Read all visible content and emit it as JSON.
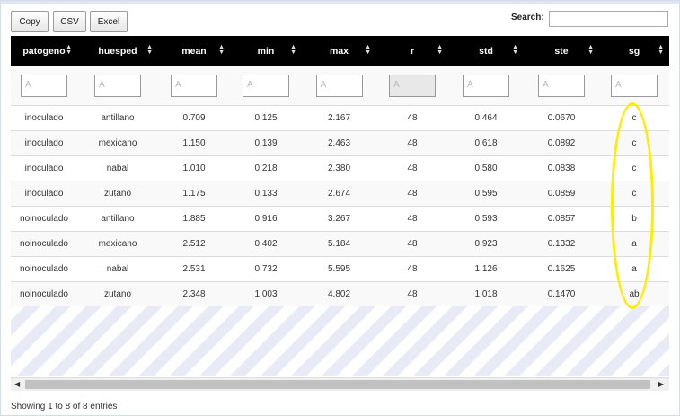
{
  "buttons": {
    "copy": "Copy",
    "csv": "CSV",
    "excel": "Excel"
  },
  "search": {
    "label": "Search:",
    "value": ""
  },
  "columns": [
    "patogeno",
    "huesped",
    "mean",
    "min",
    "max",
    "r",
    "std",
    "ste",
    "sg"
  ],
  "filters": [
    "A",
    "A",
    "A",
    "A",
    "A",
    "A",
    "A",
    "A",
    "A"
  ],
  "rows": [
    [
      "inoculado",
      "antillano",
      "0.709",
      "0.125",
      "2.167",
      "48",
      "0.464",
      "0.0670",
      "c"
    ],
    [
      "inoculado",
      "mexicano",
      "1.150",
      "0.139",
      "2.463",
      "48",
      "0.618",
      "0.0892",
      "c"
    ],
    [
      "inoculado",
      "nabal",
      "1.010",
      "0.218",
      "2.380",
      "48",
      "0.580",
      "0.0838",
      "c"
    ],
    [
      "inoculado",
      "zutano",
      "1.175",
      "0.133",
      "2.674",
      "48",
      "0.595",
      "0.0859",
      "c"
    ],
    [
      "noinoculado",
      "antillano",
      "1.885",
      "0.916",
      "3.267",
      "48",
      "0.593",
      "0.0857",
      "b"
    ],
    [
      "noinoculado",
      "mexicano",
      "2.512",
      "0.402",
      "5.184",
      "48",
      "0.923",
      "0.1332",
      "a"
    ],
    [
      "noinoculado",
      "nabal",
      "2.531",
      "0.732",
      "5.595",
      "48",
      "1.126",
      "0.1625",
      "a"
    ],
    [
      "noinoculado",
      "zutano",
      "2.348",
      "1.003",
      "4.802",
      "48",
      "1.018",
      "0.1470",
      "ab"
    ]
  ],
  "info": "Showing 1 to 8 of 8 entries",
  "colors": {
    "header_bg": "#000000",
    "highlight": "#ffec00"
  }
}
